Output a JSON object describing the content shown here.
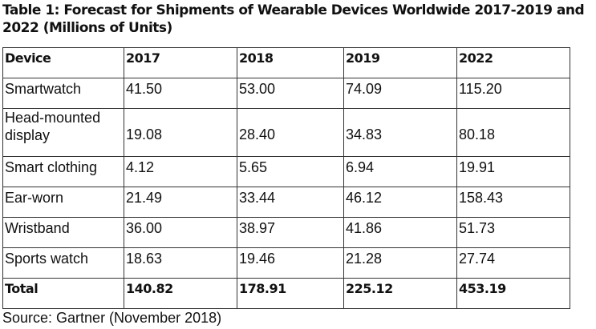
{
  "title": "Table 1: Forecast for Shipments of Wearable Devices Worldwide 2017-2019 and 2022 (Millions of Units)",
  "table": {
    "headers": [
      "Device",
      "2017",
      "2018",
      "2019",
      "2022"
    ],
    "rows": [
      [
        "Smartwatch",
        "41.50",
        "53.00",
        "74.09",
        "115.20"
      ],
      [
        "Head-mounted display",
        "19.08",
        "28.40",
        "34.83",
        "80.18"
      ],
      [
        "Smart clothing",
        "4.12",
        "5.65",
        "6.94",
        "19.91"
      ],
      [
        "Ear-worn",
        "21.49",
        "33.44",
        "46.12",
        "158.43"
      ],
      [
        "Wristband",
        "36.00",
        "38.97",
        "41.86",
        "51.73"
      ],
      [
        "Sports watch",
        "18.63",
        "19.46",
        "21.28",
        "27.74"
      ]
    ],
    "total": [
      "Total",
      "140.82",
      "178.91",
      "225.12",
      "453.19"
    ]
  },
  "source": "Source: Gartner (November 2018)"
}
